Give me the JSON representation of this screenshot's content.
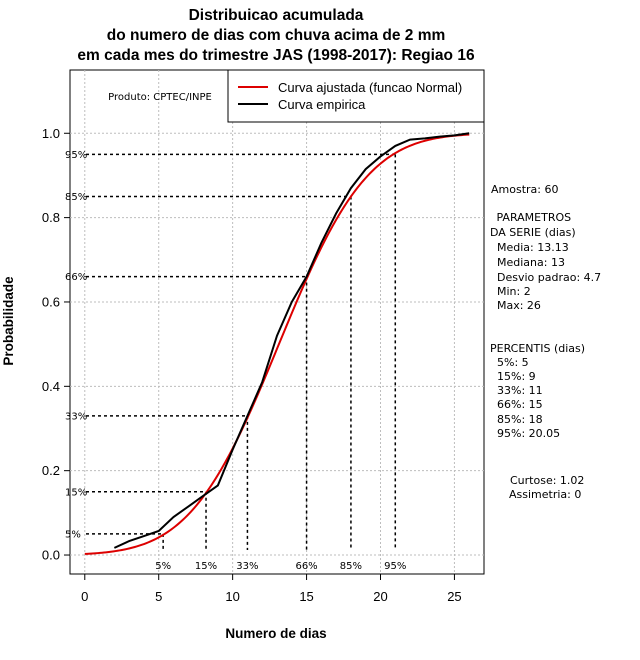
{
  "chart_data": {
    "type": "line",
    "title": [
      "Distribuicao acumulada",
      "do numero de dias com chuva acima de 2 mm",
      "em cada mes do trimestre JAS (1998-2017): Regiao 16"
    ],
    "xlabel": "Numero de dias",
    "ylabel": "Probabilidade",
    "xlim": [
      -1,
      27
    ],
    "ylim": [
      -0.045,
      1.15
    ],
    "xticks": [
      0,
      5,
      10,
      15,
      20,
      25
    ],
    "xtick_labels": [
      "0",
      "5",
      "10",
      "15",
      "20",
      "25"
    ],
    "yticks": [
      0.0,
      0.2,
      0.4,
      0.6,
      0.8,
      1.0
    ],
    "ytick_labels": [
      "0.0",
      "0.2",
      "0.4",
      "0.6",
      "0.8",
      "1.0"
    ],
    "grid": true,
    "credit": "Produto: CPTEC/INPE",
    "legend": {
      "placement": "top-right",
      "entries": [
        {
          "label": "Curva ajustada (funcao Normal)",
          "color": "#dd0000"
        },
        {
          "label": "Curva empirica",
          "color": "#000000"
        }
      ]
    },
    "series": [
      {
        "name": "Curva ajustada (funcao Normal)",
        "color": "#dd0000",
        "fit": {
          "mean": 13.13,
          "sd": 4.7
        },
        "x_range": [
          0,
          26
        ]
      },
      {
        "name": "Curva empirica",
        "color": "#000000",
        "x": [
          2,
          3,
          4,
          5,
          6,
          7,
          8,
          9,
          10,
          11,
          12,
          13,
          14,
          15,
          16,
          17,
          18,
          19,
          20,
          21,
          22,
          23,
          24,
          25,
          26
        ],
        "y": [
          0.017,
          0.033,
          0.045,
          0.057,
          0.09,
          0.115,
          0.14,
          0.165,
          0.25,
          0.33,
          0.41,
          0.52,
          0.6,
          0.66,
          0.74,
          0.81,
          0.87,
          0.915,
          0.945,
          0.97,
          0.985,
          0.988,
          0.992,
          0.995,
          1.0
        ]
      }
    ],
    "percentile_guides": [
      {
        "label": "5%",
        "prob": 0.05,
        "x": 5.3
      },
      {
        "label": "15%",
        "prob": 0.15,
        "x": 8.2
      },
      {
        "label": "33%",
        "prob": 0.33,
        "x": 11.0
      },
      {
        "label": "66%",
        "prob": 0.66,
        "x": 15.0
      },
      {
        "label": "85%",
        "prob": 0.85,
        "x": 18.0
      },
      {
        "label": "95%",
        "prob": 0.95,
        "x": 21.0
      }
    ],
    "side_panel": [
      "Amostra: 60",
      " PARAMETROS",
      "DA SERIE (dias)",
      "  Media: 13.13",
      "  Mediana: 13",
      "  Desvio padrao: 4.7",
      "  Min: 2",
      "  Max: 26",
      "PERCENTIS (dias)",
      "  5%: 5",
      "  15%: 9",
      "  33%: 11",
      "  66%: 15",
      "  85%: 18",
      "  95%: 20.05",
      "Curtose: 1.02",
      "Assimetria: 0"
    ]
  }
}
